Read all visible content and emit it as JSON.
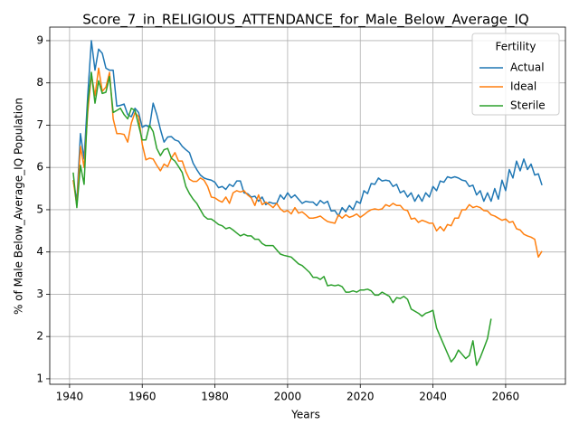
{
  "chart_data": {
    "type": "line",
    "title": "Score_7_in_RELIGIOUS_ATTENDANCE_for_Male_Below_Average_IQ",
    "x_label": "Years",
    "y_label": "% of Male Below_Average_IQ Population",
    "legend_title": "Fertility",
    "legend_loc": "upper right",
    "grid": true,
    "xlim": [
      1934.55,
      2076.45
    ],
    "ylim": [
      0.87,
      9.32
    ],
    "xticks": [
      1940,
      1960,
      1980,
      2000,
      2020,
      2040,
      2060
    ],
    "yticks": [
      1,
      2,
      3,
      4,
      5,
      6,
      7,
      8,
      9
    ],
    "x": [
      1941,
      1942,
      1943,
      1944,
      1945,
      1946,
      1947,
      1948,
      1949,
      1950,
      1951,
      1952,
      1953,
      1954,
      1955,
      1956,
      1957,
      1958,
      1959,
      1960,
      1961,
      1962,
      1963,
      1964,
      1965,
      1966,
      1967,
      1968,
      1969,
      1970,
      1971,
      1972,
      1973,
      1974,
      1975,
      1976,
      1977,
      1978,
      1979,
      1980,
      1981,
      1982,
      1983,
      1984,
      1985,
      1986,
      1987,
      1988,
      1989,
      1990,
      1991,
      1992,
      1993,
      1994,
      1995,
      1996,
      1997,
      1998,
      1999,
      2000,
      2001,
      2002,
      2003,
      2004,
      2005,
      2006,
      2007,
      2008,
      2009,
      2010,
      2011,
      2012,
      2013,
      2014,
      2015,
      2016,
      2017,
      2018,
      2019,
      2020,
      2021,
      2022,
      2023,
      2024,
      2025,
      2026,
      2027,
      2028,
      2029,
      2030,
      2031,
      2032,
      2033,
      2034,
      2035,
      2036,
      2037,
      2038,
      2039,
      2040,
      2041,
      2042,
      2043,
      2044,
      2045,
      2046,
      2047,
      2048,
      2049,
      2050,
      2051,
      2052,
      2053,
      2054,
      2055,
      2056,
      2057,
      2058,
      2059,
      2060,
      2061,
      2062,
      2063,
      2064,
      2065,
      2066,
      2067,
      2068,
      2069,
      2070
    ],
    "series": [
      {
        "name": "Actual",
        "color": "#1f77b4",
        "values": [
          5.7,
          5.2,
          6.8,
          6.2,
          7.7,
          9.0,
          8.3,
          8.8,
          8.7,
          8.35,
          8.3,
          8.3,
          7.45,
          7.47,
          7.5,
          7.25,
          7.2,
          7.4,
          7.3,
          6.95,
          7.0,
          6.95,
          7.52,
          7.25,
          6.9,
          6.6,
          6.72,
          6.73,
          6.65,
          6.62,
          6.5,
          6.42,
          6.35,
          6.1,
          5.95,
          5.82,
          5.75,
          5.72,
          5.7,
          5.65,
          5.52,
          5.55,
          5.48,
          5.6,
          5.55,
          5.68,
          5.68,
          5.4,
          5.38,
          5.3,
          5.32,
          5.2,
          5.3,
          5.12,
          5.18,
          5.15,
          5.15,
          5.35,
          5.25,
          5.4,
          5.28,
          5.35,
          5.25,
          5.15,
          5.2,
          5.18,
          5.18,
          5.1,
          5.22,
          5.15,
          5.2,
          4.97,
          4.98,
          4.85,
          5.05,
          4.95,
          5.1,
          5.0,
          5.2,
          5.15,
          5.45,
          5.38,
          5.62,
          5.6,
          5.75,
          5.68,
          5.7,
          5.68,
          5.55,
          5.6,
          5.4,
          5.45,
          5.3,
          5.4,
          5.2,
          5.35,
          5.2,
          5.4,
          5.3,
          5.55,
          5.45,
          5.68,
          5.65,
          5.78,
          5.75,
          5.78,
          5.75,
          5.7,
          5.68,
          5.55,
          5.58,
          5.35,
          5.45,
          5.2,
          5.4,
          5.2,
          5.5,
          5.25,
          5.7,
          5.45,
          5.95,
          5.75,
          6.15,
          5.92,
          6.2,
          5.95,
          6.08,
          5.82,
          5.85,
          5.58
        ]
      },
      {
        "name": "Ideal",
        "color": "#ff7f0e",
        "values": [
          5.7,
          5.1,
          6.5,
          6.0,
          7.3,
          8.2,
          7.7,
          8.35,
          7.8,
          7.9,
          8.25,
          7.15,
          6.8,
          6.8,
          6.78,
          6.6,
          7.05,
          7.3,
          7.2,
          6.55,
          6.18,
          6.22,
          6.2,
          6.05,
          5.92,
          6.08,
          6.02,
          6.22,
          6.35,
          6.15,
          6.15,
          5.9,
          5.72,
          5.67,
          5.67,
          5.75,
          5.7,
          5.55,
          5.3,
          5.28,
          5.22,
          5.18,
          5.3,
          5.15,
          5.4,
          5.45,
          5.42,
          5.45,
          5.35,
          5.28,
          5.1,
          5.35,
          5.12,
          5.18,
          5.12,
          5.05,
          5.15,
          5.02,
          4.95,
          4.98,
          4.9,
          5.05,
          4.92,
          4.95,
          4.88,
          4.8,
          4.8,
          4.82,
          4.85,
          4.78,
          4.72,
          4.7,
          4.68,
          4.88,
          4.8,
          4.88,
          4.82,
          4.85,
          4.9,
          4.82,
          4.88,
          4.95,
          5.0,
          5.02,
          5.0,
          5.02,
          5.12,
          5.08,
          5.15,
          5.1,
          5.1,
          5.0,
          4.98,
          4.78,
          4.8,
          4.7,
          4.75,
          4.72,
          4.68,
          4.68,
          4.5,
          4.6,
          4.5,
          4.65,
          4.62,
          4.8,
          4.8,
          5.0,
          5.0,
          5.12,
          5.05,
          5.08,
          5.05,
          4.98,
          4.97,
          4.88,
          4.85,
          4.8,
          4.75,
          4.78,
          4.7,
          4.72,
          4.55,
          4.52,
          4.42,
          4.38,
          4.35,
          4.3,
          3.88,
          4.02
        ]
      },
      {
        "name": "Sterile",
        "color": "#2ca02c",
        "values": [
          5.88,
          5.05,
          6.05,
          5.6,
          7.5,
          8.25,
          7.52,
          8.05,
          7.75,
          7.78,
          8.15,
          7.3,
          7.35,
          7.4,
          7.25,
          7.15,
          7.4,
          7.35,
          7.0,
          6.65,
          6.65,
          7.0,
          6.85,
          6.45,
          6.28,
          6.42,
          6.45,
          6.22,
          6.15,
          6.02,
          5.88,
          5.55,
          5.38,
          5.25,
          5.15,
          5.0,
          4.85,
          4.78,
          4.78,
          4.72,
          4.65,
          4.62,
          4.55,
          4.58,
          4.52,
          4.45,
          4.38,
          4.42,
          4.38,
          4.38,
          4.3,
          4.3,
          4.2,
          4.15,
          4.15,
          4.15,
          4.05,
          3.95,
          3.92,
          3.9,
          3.88,
          3.8,
          3.72,
          3.68,
          3.6,
          3.52,
          3.4,
          3.4,
          3.35,
          3.42,
          3.2,
          3.22,
          3.2,
          3.22,
          3.18,
          3.05,
          3.05,
          3.08,
          3.05,
          3.1,
          3.1,
          3.12,
          3.08,
          2.98,
          2.98,
          3.05,
          3.0,
          2.95,
          2.8,
          2.92,
          2.9,
          2.95,
          2.88,
          2.65,
          2.6,
          2.55,
          2.48,
          2.55,
          2.58,
          2.62,
          2.2,
          2.0,
          1.8,
          1.6,
          1.4,
          1.5,
          1.68,
          1.58,
          1.48,
          1.55,
          1.9,
          1.32,
          1.5,
          1.72,
          1.95,
          2.42,
          null,
          null,
          null,
          null,
          null,
          null,
          null,
          null,
          null,
          null,
          null,
          null,
          null,
          null
        ]
      }
    ]
  }
}
